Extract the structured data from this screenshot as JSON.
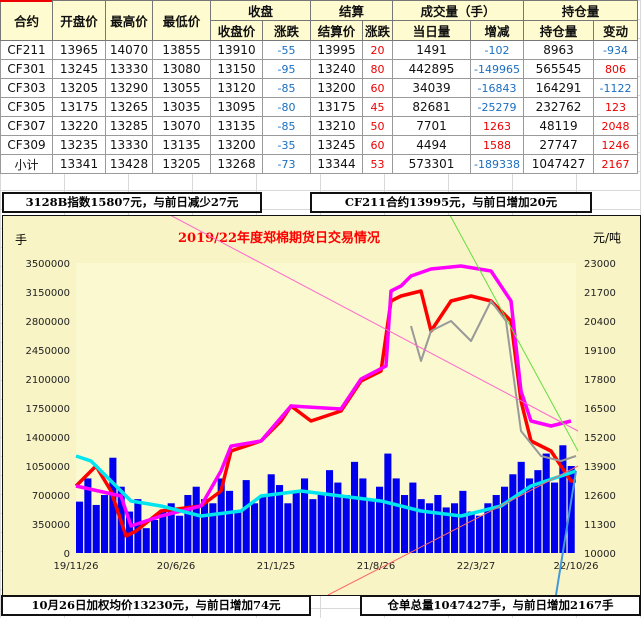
{
  "table": {
    "group_headers": {
      "close": "收盘",
      "settle": "结算",
      "volume": "成交量（手）",
      "oi": "持仓量"
    },
    "headers": [
      "合约",
      "开盘价",
      "最高价",
      "最低价",
      "收盘价",
      "涨跌",
      "结算价",
      "涨跌",
      "当日量",
      "增减",
      "持仓量",
      "变动"
    ],
    "rows": [
      [
        "CF211",
        "13965",
        "14070",
        "13855",
        "13910",
        "-55",
        "13995",
        "20",
        "1491",
        "-102",
        "8963",
        "-934"
      ],
      [
        "CF301",
        "13245",
        "13330",
        "13080",
        "13150",
        "-95",
        "13240",
        "80",
        "442895",
        "-149965",
        "565545",
        "806"
      ],
      [
        "CF303",
        "13205",
        "13290",
        "13055",
        "13120",
        "-85",
        "13200",
        "60",
        "34039",
        "-16843",
        "164291",
        "-1122"
      ],
      [
        "CF305",
        "13175",
        "13265",
        "13035",
        "13095",
        "-80",
        "13175",
        "45",
        "82681",
        "-25279",
        "232762",
        "123"
      ],
      [
        "CF307",
        "13220",
        "13285",
        "13070",
        "13135",
        "-85",
        "13210",
        "50",
        "7701",
        "1263",
        "48119",
        "2048"
      ],
      [
        "CF309",
        "13235",
        "13330",
        "13135",
        "13200",
        "-35",
        "13245",
        "60",
        "4494",
        "1588",
        "27747",
        "1246"
      ],
      [
        "小计",
        "13341",
        "13428",
        "13205",
        "13268",
        "-73",
        "13344",
        "53",
        "573301",
        "-189338",
        "1047427",
        "2167"
      ]
    ]
  },
  "notes": {
    "index": "3128B指数15807元，与前日减少27元",
    "cf211": "CF211合约13995元，与前日增加20元",
    "weighted": "10月26日加权均价13230元，与前日增加74元",
    "warehouse": "仓单总量1047427手，与前日增加2167手"
  },
  "colors": {
    "up": "#ee0000",
    "down": "#1a6ec0",
    "title": "#ff0000",
    "bars": "#0000ee",
    "price": "#ff0000",
    "magenta": "#ff00ff",
    "gray": "#999999",
    "cyan": "#00e5ee",
    "plot_bg": "#f8f4c5"
  },
  "chart_data": {
    "type": "bar+line",
    "title": "2019/22年度郑棉期货日交易情况",
    "ylabel_left": "手",
    "ylabel_right": "元/吨",
    "ylim_left": [
      0,
      3500000
    ],
    "ylim_right": [
      10000,
      23000
    ],
    "left_ticks": [
      "0",
      "350000",
      "700000",
      "1050000",
      "1400000",
      "1750000",
      "2100000",
      "2450000",
      "2800000",
      "3150000",
      "3500000"
    ],
    "right_ticks": [
      "10000",
      "11300",
      "12600",
      "13900",
      "15200",
      "16500",
      "17800",
      "19100",
      "20400",
      "21700",
      "23000"
    ],
    "x_ticks": [
      "19/11/26",
      "20/6/26",
      "21/1/25",
      "21/8/26",
      "22/3/27",
      "22/10/26"
    ],
    "grid": false,
    "bars_left": [
      620000,
      900000,
      580000,
      700000,
      1150000,
      800000,
      500000,
      650000,
      300000,
      400000,
      520000,
      600000,
      450000,
      700000,
      800000,
      650000,
      600000,
      900000,
      750000,
      500000,
      880000,
      600000,
      700000,
      950000,
      820000,
      600000,
      750000,
      900000,
      650000,
      700000,
      1000000,
      850000,
      700000,
      1100000,
      900000,
      650000,
      800000,
      1200000,
      900000,
      700000,
      850000,
      650000,
      600000,
      700000,
      550000,
      600000,
      750000,
      500000,
      450000,
      600000,
      700000,
      800000,
      950000,
      1100000,
      900000,
      1000000,
      1200000,
      850000,
      1300000,
      1050000
    ],
    "series": [
      {
        "axis": "right",
        "color": "price",
        "x": [
          0,
          0.04,
          0.07,
          0.1,
          0.12,
          0.17,
          0.25,
          0.29,
          0.31,
          0.37,
          0.41,
          0.43,
          0.47,
          0.53,
          0.57,
          0.61,
          0.63,
          0.65,
          0.69,
          0.71,
          0.75,
          0.79,
          0.83,
          0.87,
          0.89,
          0.91,
          0.95,
          0.99,
          1
        ],
        "y": [
          13003,
          13900,
          12779,
          10762,
          10986,
          11883,
          12107,
          12779,
          14572,
          15021,
          15917,
          16590,
          15917,
          16366,
          17710,
          18159,
          21297,
          21521,
          21745,
          19952,
          21297,
          21521,
          21297,
          20400,
          16814,
          15021,
          14572,
          13228,
          13228
        ]
      },
      {
        "axis": "right",
        "color": "magenta",
        "x": [
          0,
          0.09,
          0.11,
          0.17,
          0.25,
          0.29,
          0.31,
          0.37,
          0.43,
          0.53,
          0.57,
          0.62,
          0.63,
          0.65,
          0.67,
          0.71,
          0.77,
          0.83,
          0.87,
          0.89,
          0.91,
          0.95,
          0.99
        ],
        "y": [
          13003,
          12555,
          11210,
          11659,
          12107,
          13676,
          14790,
          15021,
          16590,
          16455,
          17800,
          18383,
          21745,
          21969,
          22417,
          22731,
          22866,
          22641,
          21297,
          17262,
          15917,
          15693,
          15917
        ]
      },
      {
        "axis": "right",
        "color": "gray",
        "x": [
          0.67,
          0.69,
          0.71,
          0.75,
          0.79,
          0.83,
          0.86,
          0.89,
          0.93,
          0.97,
          1
        ],
        "y": [
          20176,
          18607,
          19952,
          20400,
          19503,
          21297,
          20400,
          15469,
          14348,
          14124,
          14348
        ]
      },
      {
        "axis": "left",
        "color": "cyan",
        "x": [
          0,
          0.03,
          0.05,
          0.07,
          0.11,
          0.17,
          0.25,
          0.33,
          0.37,
          0.45,
          0.53,
          0.61,
          0.69,
          0.77,
          0.85,
          0.91,
          0.97,
          1
        ],
        "y": [
          1170690,
          1110345,
          989655,
          868966,
          627586,
          567241,
          446552,
          506897,
          687931,
          748276,
          687931,
          627586,
          506897,
          446552,
          567241,
          808621,
          929310,
          989655
        ]
      }
    ]
  }
}
